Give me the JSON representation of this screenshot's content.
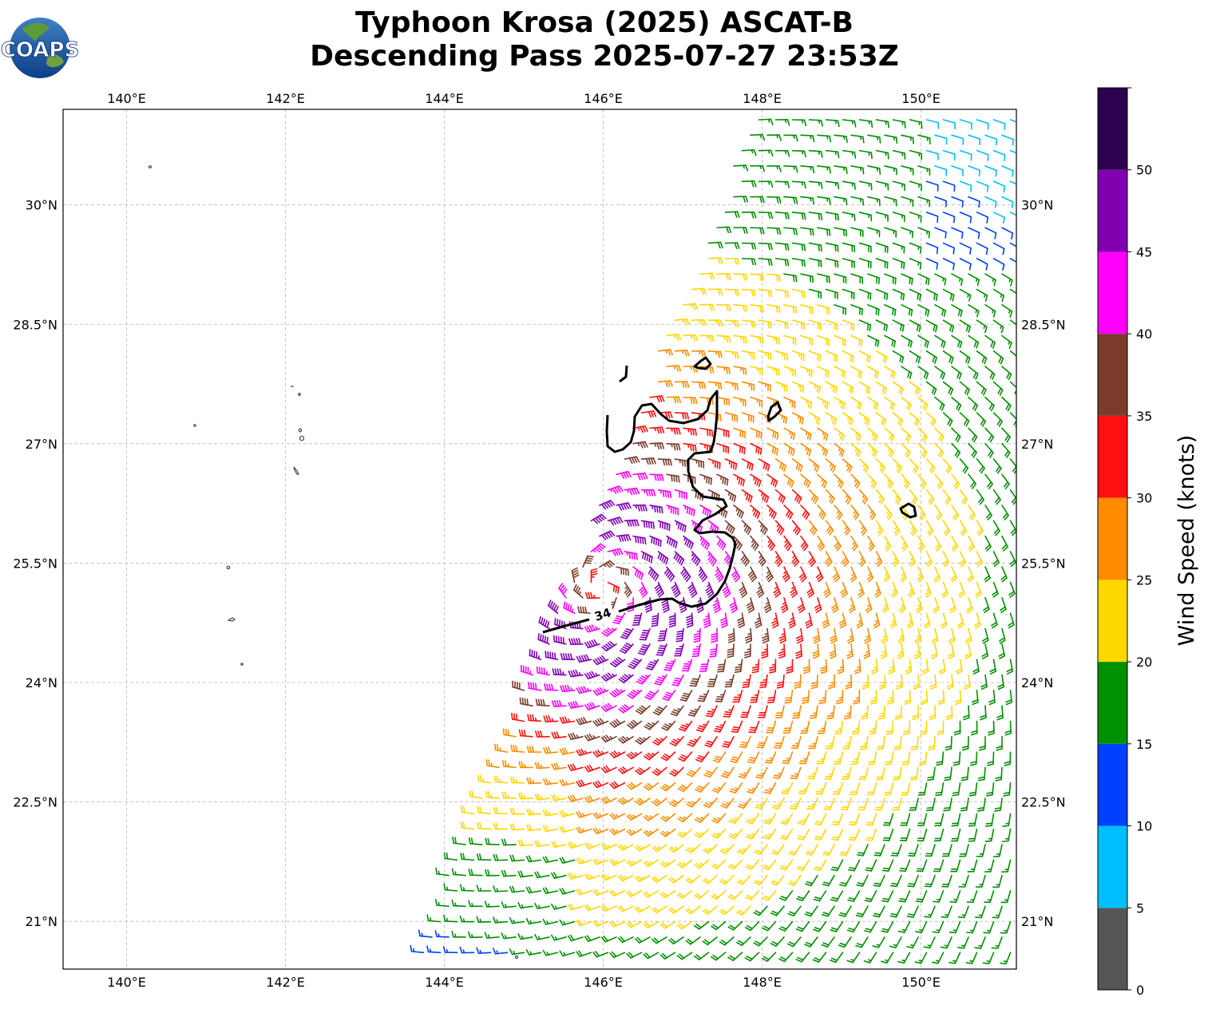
{
  "title": {
    "line1": "Typhoon Krosa (2025) ASCAT-B",
    "line2": "Descending Pass 2025-07-27 23:53Z"
  },
  "logo": {
    "text": "COAPS"
  },
  "map": {
    "extent": {
      "lon": [
        139.2,
        151.2
      ],
      "lat": [
        20.4,
        31.2
      ]
    },
    "lon_ticks": [
      140,
      142,
      144,
      146,
      148,
      150
    ],
    "lat_ticks": [
      21,
      22.5,
      24,
      25.5,
      27,
      28.5,
      30
    ],
    "lon_tick_labels": [
      "140°E",
      "142°E",
      "144°E",
      "146°E",
      "148°E",
      "150°E"
    ],
    "lat_tick_labels": [
      "21°N",
      "22.5°N",
      "24°N",
      "25.5°N",
      "27°N",
      "28.5°N",
      "30°N"
    ],
    "gridlines": true,
    "center": {
      "lon": 146.0,
      "lat": 25.2
    },
    "contour": {
      "level": 34,
      "label": "34"
    }
  },
  "colorbar": {
    "label": "Wind Speed (knots)",
    "ticks": [
      "0",
      "5",
      "10",
      "15",
      "20",
      "25",
      "30",
      "35",
      "40",
      "45",
      "50"
    ],
    "bins": [
      {
        "min": 0,
        "max": 5,
        "color": "#555555"
      },
      {
        "min": 5,
        "max": 10,
        "color": "#00bfff"
      },
      {
        "min": 10,
        "max": 15,
        "color": "#0040ff"
      },
      {
        "min": 15,
        "max": 20,
        "color": "#009000"
      },
      {
        "min": 20,
        "max": 25,
        "color": "#ffd700"
      },
      {
        "min": 25,
        "max": 30,
        "color": "#ff8c00"
      },
      {
        "min": 30,
        "max": 35,
        "color": "#ff1010"
      },
      {
        "min": 35,
        "max": 40,
        "color": "#7a3b2a"
      },
      {
        "min": 40,
        "max": 45,
        "color": "#ff00ff"
      },
      {
        "min": 45,
        "max": 50,
        "color": "#8000b0"
      },
      {
        "min": 50,
        "max": 55,
        "color": "#2d0050"
      }
    ]
  }
}
